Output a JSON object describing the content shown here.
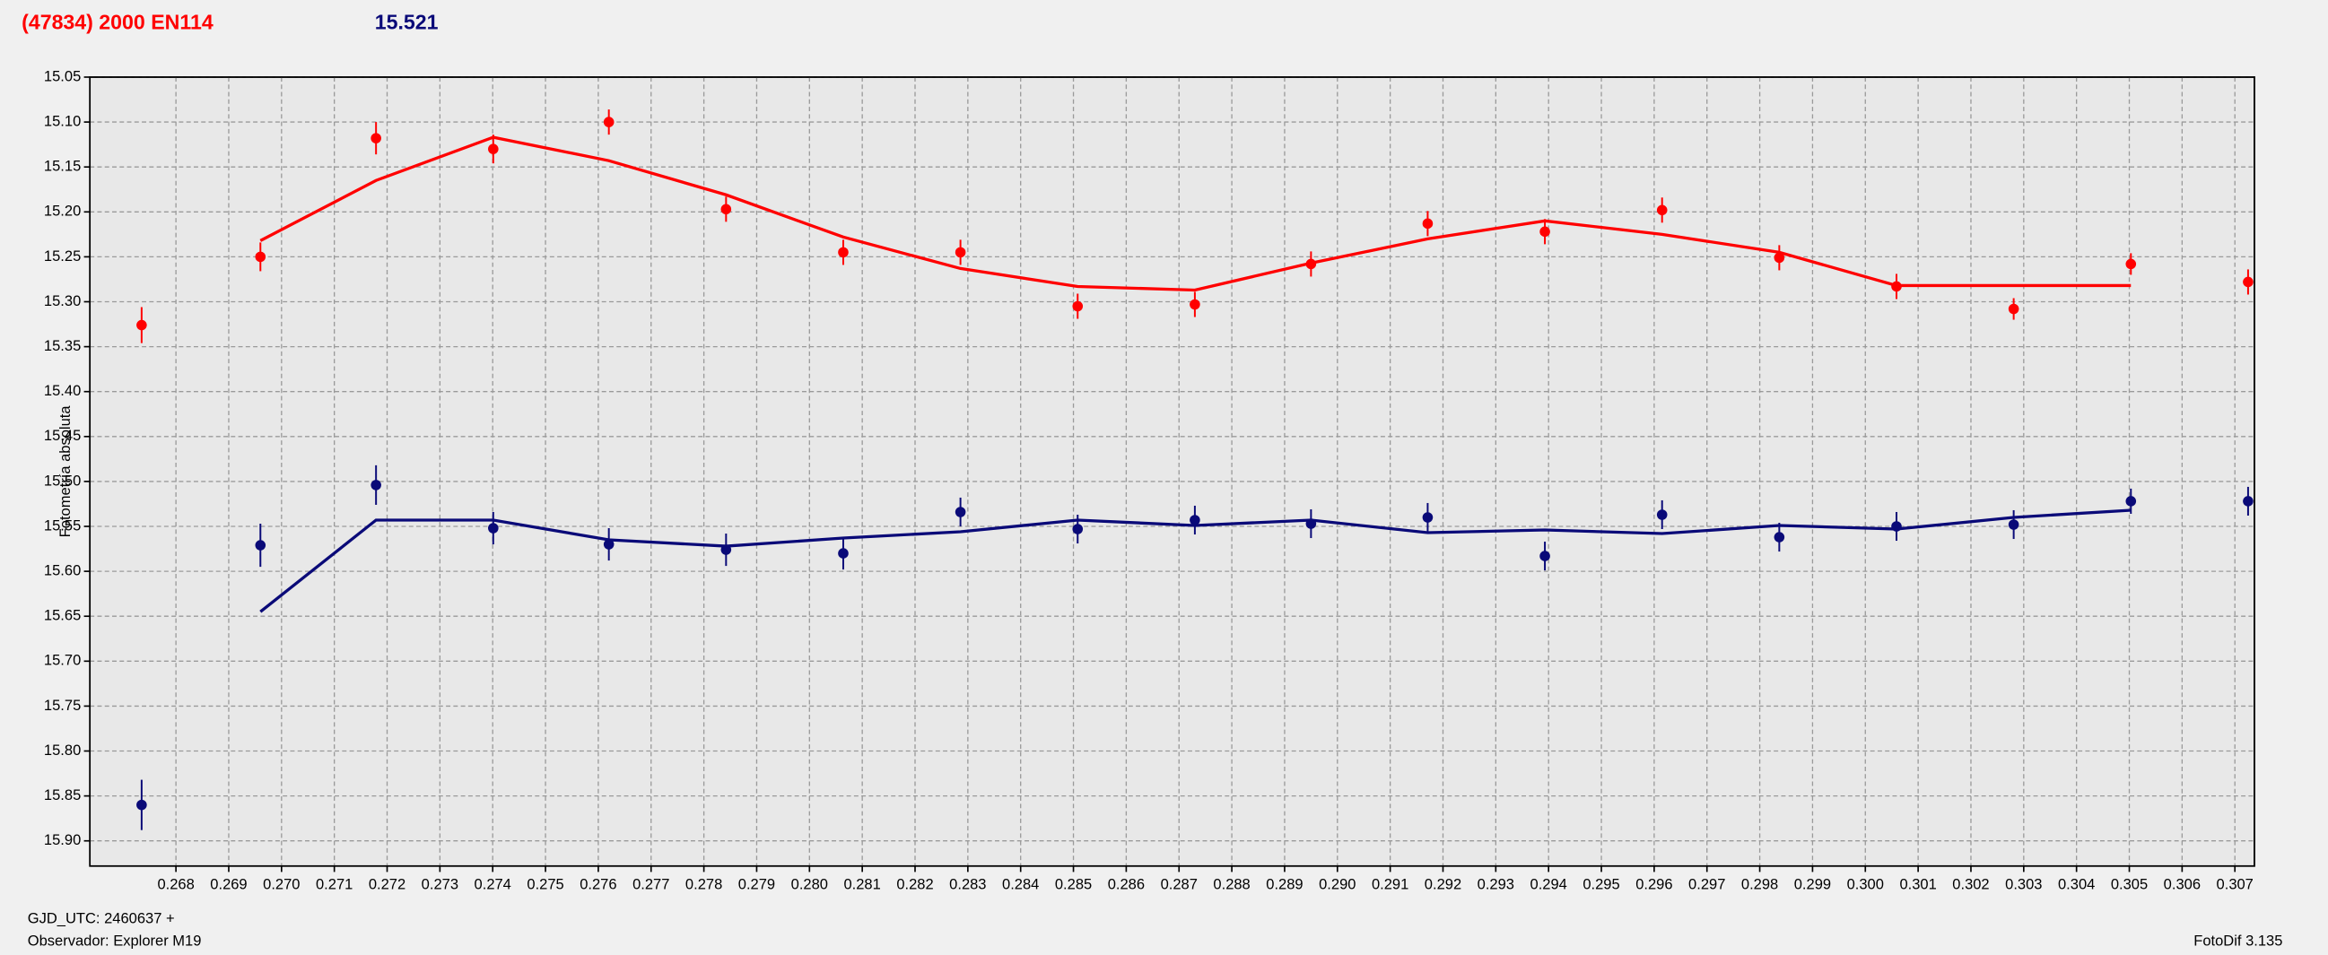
{
  "chart_data": {
    "type": "scatter",
    "title": "(47834) 2000 EN114",
    "subtitle": "15.521",
    "y_label": "Fotometría absoluta",
    "x_label": "GJD_UTC: 2460637 +",
    "observer": "Observador: Explorer M19",
    "software": "FotoDif 3.135",
    "grid": true,
    "y_inverted": true,
    "xlim": [
      0.26637,
      0.30737
    ],
    "ylim": [
      15.05,
      15.928
    ],
    "xticks": [
      0.268,
      0.269,
      {
        "value": 0.27,
        "label": "0.270"
      },
      0.271,
      0.272,
      0.273,
      0.274,
      0.275,
      0.276,
      0.277,
      0.278,
      0.279,
      {
        "value": 0.28,
        "label": "0.280"
      },
      0.281,
      0.282,
      0.283,
      0.284,
      0.285,
      0.286,
      0.287,
      0.288,
      0.289,
      {
        "value": 0.29,
        "label": "0.290"
      },
      0.291,
      0.292,
      0.293,
      0.294,
      0.295,
      0.296,
      0.297,
      0.298,
      0.299,
      {
        "value": 0.3,
        "label": "0.300"
      },
      0.301,
      0.302,
      0.303,
      0.304,
      0.305,
      0.306,
      0.307
    ],
    "yticks": [
      15.05,
      {
        "value": 15.1,
        "label": "15.10"
      },
      15.15,
      {
        "value": 15.2,
        "label": "15.20"
      },
      15.25,
      {
        "value": 15.3,
        "label": "15.30"
      },
      15.35,
      {
        "value": 15.4,
        "label": "15.40"
      },
      15.45,
      {
        "value": 15.5,
        "label": "15.50"
      },
      15.55,
      {
        "value": 15.6,
        "label": "15.60"
      },
      15.65,
      {
        "value": 15.7,
        "label": "15.70"
      },
      15.75,
      {
        "value": 15.8,
        "label": "15.80"
      },
      15.85,
      {
        "value": 15.9,
        "label": "15.90"
      }
    ],
    "x": [
      0.26735,
      0.2696,
      0.27179,
      0.27401,
      0.2762,
      0.27842,
      0.28064,
      0.28286,
      0.28508,
      0.2873,
      0.2895,
      0.29171,
      0.29393,
      0.29615,
      0.29837,
      0.30059,
      0.30281,
      0.30503,
      0.30725
    ],
    "series": [
      {
        "color": "#ff0000",
        "values": [
          15.326,
          15.25,
          15.118,
          15.13,
          15.1,
          15.197,
          15.245,
          15.245,
          15.305,
          15.303,
          15.258,
          15.213,
          15.222,
          15.198,
          15.251,
          15.283,
          15.308,
          15.258,
          15.278
        ],
        "errors": [
          0.02,
          0.016,
          0.018,
          0.016,
          0.014,
          0.014,
          0.014,
          0.014,
          0.014,
          0.014,
          0.014,
          0.014,
          0.014,
          0.014,
          0.014,
          0.014,
          0.012,
          0.012,
          0.014
        ],
        "fit": [
          null,
          15.232,
          15.165,
          15.117,
          15.143,
          15.181,
          15.228,
          15.263,
          15.283,
          15.287,
          15.257,
          15.23,
          15.21,
          15.225,
          15.245,
          15.282,
          15.282,
          15.282,
          null
        ]
      },
      {
        "color": "#0a0a78",
        "values": [
          15.86,
          15.571,
          15.504,
          15.552,
          15.57,
          15.576,
          15.58,
          15.534,
          15.553,
          15.543,
          15.547,
          15.54,
          15.583,
          15.537,
          15.562,
          15.55,
          15.548,
          15.522,
          15.522
        ],
        "errors": [
          0.028,
          0.024,
          0.022,
          0.018,
          0.018,
          0.018,
          0.018,
          0.016,
          0.016,
          0.016,
          0.016,
          0.016,
          0.016,
          0.016,
          0.016,
          0.016,
          0.016,
          0.014,
          0.016
        ],
        "fit": [
          null,
          15.645,
          15.543,
          15.543,
          15.565,
          15.572,
          15.563,
          15.556,
          15.543,
          15.549,
          15.543,
          15.557,
          15.554,
          15.558,
          15.549,
          15.553,
          15.54,
          15.532,
          null
        ]
      }
    ]
  }
}
